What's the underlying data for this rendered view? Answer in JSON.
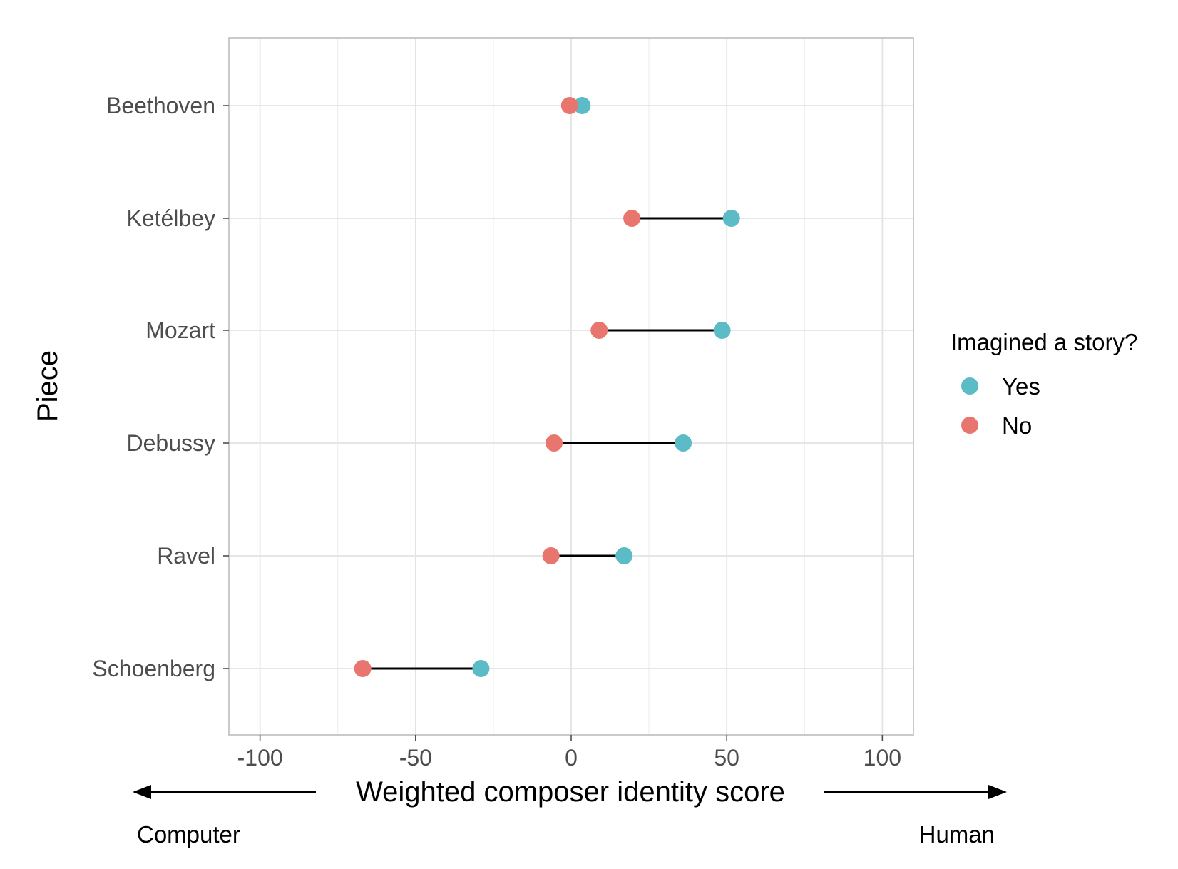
{
  "chart_data": {
    "type": "dumbbell",
    "title": "",
    "xlabel": "Weighted composer identity score",
    "ylabel": "Piece",
    "xlim": [
      -110,
      110
    ],
    "x_ticks": [
      -100,
      -50,
      0,
      50,
      100
    ],
    "x_tick_labels": [
      "-100",
      "-50",
      "0",
      "50",
      "100"
    ],
    "grid": true,
    "legend": {
      "title": "Imagined a story?",
      "placement": "right"
    },
    "axis_endpoints": {
      "left": "Computer",
      "right": "Human"
    },
    "categories": [
      "Beethoven",
      "Ketélbey",
      "Mozart",
      "Debussy",
      "Ravel",
      "Schoenberg"
    ],
    "series": [
      {
        "name": "Yes",
        "color": "#5bbcc7",
        "values": [
          3.5,
          51.5,
          48.5,
          36,
          17,
          -29
        ]
      },
      {
        "name": "No",
        "color": "#e8766f",
        "values": [
          -0.5,
          19.5,
          9,
          -5.5,
          -6.5,
          -67
        ]
      }
    ],
    "connector_color": "#000000"
  }
}
